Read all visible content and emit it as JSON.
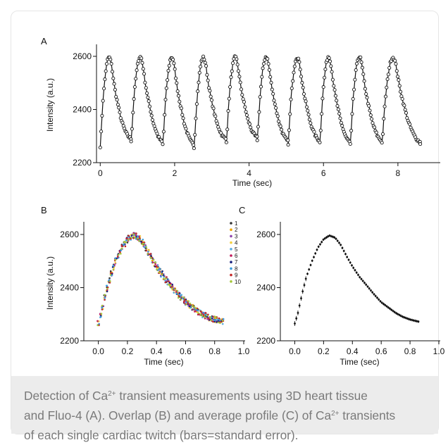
{
  "caption": {
    "line1_a": "Detection of Ca",
    "sup1": "2+",
    "line1_b": " transient measurements using 3D heart tissue",
    "line2_a": "and Fluo-4 (A). Overlap (B) and average profile (C) of Ca",
    "sup2": "2+",
    "line2_b": " transients",
    "line3": "of each single cardiac twitch (bars=standard error)."
  },
  "colors": {
    "axis": "#111111",
    "marker": "#111111",
    "caption_bg": "#ececec",
    "caption_text": "#7a7a7a",
    "series_colors": [
      "#333333",
      "#f0a500",
      "#8e44ad",
      "#f4d03f",
      "#5dade2",
      "#c2185b",
      "#1a237e",
      "#3a9ad9",
      "#c62828",
      "#a4c639"
    ]
  },
  "chart_data": [
    {
      "panel": "A",
      "type": "line",
      "xlabel": "Time (sec)",
      "ylabel": "Intensity (a.u.)",
      "xlim": [
        -0.1,
        9.1
      ],
      "ylim": [
        2200,
        2650
      ],
      "xticks": [
        0,
        2,
        4,
        6,
        8
      ],
      "yticks": [
        2200,
        2400,
        2600
      ],
      "beat_onsets": [
        0.0,
        0.83,
        1.68,
        2.52,
        3.39,
        4.22,
        5.05,
        5.9,
        6.72,
        7.57
      ],
      "beat_troughs": [
        2262,
        2283,
        2268,
        2259,
        2281,
        2287,
        2272,
        2275,
        2268,
        2274
      ],
      "beat_peaks": [
        2598,
        2600,
        2598,
        2597,
        2598,
        2600,
        2598,
        2600,
        2600,
        2598
      ],
      "end_time": 8.6,
      "end_value": 2270,
      "markers": "open-circle"
    },
    {
      "panel": "B",
      "type": "scatter",
      "xlabel": "Time (sec)",
      "ylabel": "Intensity (a.u.)",
      "xlim": [
        -0.1,
        1.0
      ],
      "ylim": [
        2200,
        2650
      ],
      "xticks": [
        0.0,
        0.2,
        0.4,
        0.6,
        0.8,
        1.0
      ],
      "yticks": [
        2200,
        2400,
        2600
      ],
      "legend_position": "top-right",
      "series": [
        {
          "name": "1"
        },
        {
          "name": "2"
        },
        {
          "name": "3"
        },
        {
          "name": "4"
        },
        {
          "name": "5"
        },
        {
          "name": "6"
        },
        {
          "name": "7"
        },
        {
          "name": "8"
        },
        {
          "name": "9"
        },
        {
          "name": "10"
        }
      ],
      "profile": {
        "x": [
          0.0,
          0.02,
          0.05,
          0.08,
          0.12,
          0.16,
          0.2,
          0.24,
          0.28,
          0.32,
          0.36,
          0.4,
          0.45,
          0.5,
          0.55,
          0.6,
          0.65,
          0.7,
          0.75,
          0.8,
          0.86
        ],
        "y": [
          2265,
          2300,
          2375,
          2440,
          2500,
          2550,
          2582,
          2596,
          2588,
          2560,
          2518,
          2480,
          2440,
          2408,
          2375,
          2345,
          2325,
          2305,
          2290,
          2280,
          2272
        ]
      },
      "x_end": 0.86
    },
    {
      "panel": "C",
      "type": "scatter",
      "xlabel": "Time (sec)",
      "ylabel": "",
      "xlim": [
        -0.1,
        1.0
      ],
      "ylim": [
        2200,
        2650
      ],
      "xticks": [
        0.0,
        0.2,
        0.4,
        0.6,
        0.8,
        1.0
      ],
      "yticks": [
        2200,
        2400,
        2600
      ],
      "error_bars": "standard error",
      "profile": {
        "x": [
          0.0,
          0.02,
          0.05,
          0.08,
          0.12,
          0.16,
          0.2,
          0.24,
          0.28,
          0.32,
          0.36,
          0.4,
          0.45,
          0.5,
          0.55,
          0.6,
          0.65,
          0.7,
          0.75,
          0.8,
          0.86
        ],
        "y": [
          2265,
          2300,
          2375,
          2440,
          2500,
          2550,
          2582,
          2596,
          2588,
          2560,
          2518,
          2480,
          2440,
          2408,
          2375,
          2345,
          2325,
          2305,
          2290,
          2280,
          2272
        ]
      },
      "x_end": 0.86
    }
  ]
}
